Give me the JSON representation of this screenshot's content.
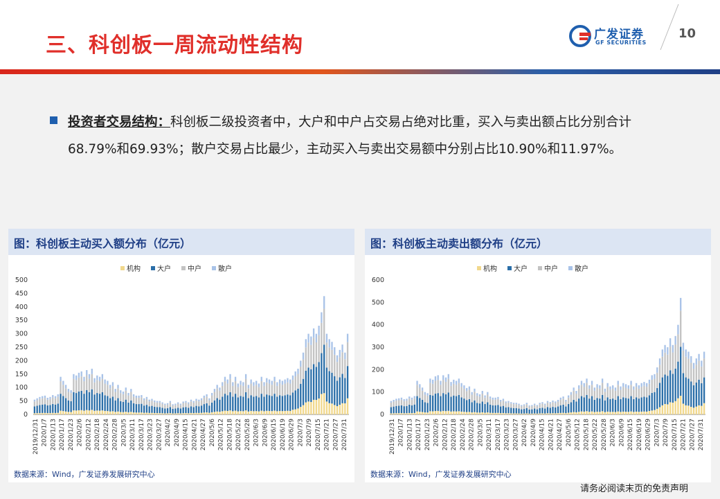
{
  "header": {
    "title": "三、科创板一周流动性结构",
    "logo_cn": "广发证券",
    "logo_en": "GF SECURITIES",
    "page_number": "10"
  },
  "body": {
    "lead": "投资者交易结构：",
    "text": "科创板二级投资者中，大户和中户占交易占绝对比重，买入与卖出额占比分别合计68.79%和69.93%；散户交易占比最少，主动买入与卖出交易额中分别占比10.90%和11.97%。"
  },
  "footer_note": "请务必阅读末页的免责声明",
  "colors": {
    "institution": "#f1d88c",
    "large": "#2a6ea8",
    "medium": "#c3c3c3",
    "retail": "#a9c3e8",
    "accent_red": "#e02f2a",
    "accent_blue": "#1f5fae"
  },
  "chart_data": [
    {
      "type": "bar",
      "title": "图：科创板主动买入额分布（亿元）",
      "source": "数据来源：Wind，广发证券发展研究中心",
      "stacked": true,
      "ylim": [
        0,
        500
      ],
      "yticks": [
        0,
        50,
        100,
        150,
        200,
        250,
        300,
        350,
        400,
        450,
        500
      ],
      "legend": [
        "机构",
        "大户",
        "中户",
        "散户"
      ],
      "legend_position": "top",
      "xtick_labels": [
        "2019/12/31",
        "2020/1/7",
        "2020/1/13",
        "2020/1/17",
        "2020/1/23",
        "2020/2/6",
        "2020/2/12",
        "2020/2/18",
        "2020/2/24",
        "2020/2/28",
        "2020/3/5",
        "2020/3/11",
        "2020/3/17",
        "2020/3/23",
        "2020/3/27",
        "2020/4/2",
        "2020/4/9",
        "2020/4/15",
        "2020/4/21",
        "2020/4/27",
        "2020/5/6",
        "2020/5/12",
        "2020/5/18",
        "2020/5/22",
        "2020/5/28",
        "2020/6/3",
        "2020/6/9",
        "2020/6/15",
        "2020/6/19",
        "2020/6/29",
        "2020/7/3",
        "2020/7/9",
        "2020/7/15",
        "2020/7/21",
        "2020/7/27",
        "2020/7/31"
      ],
      "totals": [
        55,
        60,
        65,
        68,
        70,
        62,
        65,
        72,
        68,
        75,
        140,
        125,
        110,
        95,
        90,
        150,
        145,
        155,
        160,
        140,
        165,
        150,
        170,
        135,
        145,
        140,
        150,
        130,
        125,
        110,
        120,
        95,
        110,
        90,
        85,
        100,
        80,
        95,
        75,
        70,
        70,
        72,
        60,
        65,
        55,
        58,
        52,
        50,
        50,
        45,
        40,
        42,
        50,
        38,
        40,
        45,
        40,
        48,
        50,
        45,
        55,
        50,
        58,
        55,
        60,
        70,
        75,
        60,
        80,
        95,
        110,
        100,
        120,
        140,
        130,
        150,
        120,
        140,
        115,
        125,
        120,
        150,
        110,
        130,
        120,
        125,
        115,
        140,
        120,
        135,
        130,
        125,
        140,
        120,
        130,
        125,
        130,
        135,
        130,
        145,
        160,
        170,
        200,
        230,
        280,
        300,
        290,
        320,
        300,
        330,
        380,
        440,
        300,
        280,
        270,
        250,
        220,
        240,
        260,
        230,
        300
      ],
      "inst_share": [
        0.08,
        0.08,
        0.08,
        0.08,
        0.08,
        0.08,
        0.08,
        0.08,
        0.08,
        0.08,
        0.1,
        0.1,
        0.1,
        0.1,
        0.1,
        0.1,
        0.1,
        0.1,
        0.1,
        0.1,
        0.1,
        0.1,
        0.1,
        0.1,
        0.1,
        0.1,
        0.1,
        0.1,
        0.1,
        0.1,
        0.1,
        0.1,
        0.1,
        0.1,
        0.1,
        0.1,
        0.1,
        0.1,
        0.1,
        0.1,
        0.1,
        0.1,
        0.1,
        0.1,
        0.1,
        0.1,
        0.1,
        0.1,
        0.1,
        0.1,
        0.1,
        0.1,
        0.1,
        0.1,
        0.1,
        0.1,
        0.1,
        0.1,
        0.1,
        0.1,
        0.1,
        0.1,
        0.1,
        0.1,
        0.1,
        0.1,
        0.1,
        0.1,
        0.1,
        0.1,
        0.1,
        0.1,
        0.1,
        0.1,
        0.1,
        0.1,
        0.1,
        0.1,
        0.1,
        0.1,
        0.1,
        0.1,
        0.1,
        0.1,
        0.1,
        0.1,
        0.1,
        0.1,
        0.1,
        0.1,
        0.1,
        0.1,
        0.1,
        0.1,
        0.1,
        0.1,
        0.1,
        0.1,
        0.1,
        0.12,
        0.12,
        0.13,
        0.14,
        0.15,
        0.16,
        0.16,
        0.16,
        0.17,
        0.18,
        0.18,
        0.2,
        0.18,
        0.16,
        0.15,
        0.15,
        0.14,
        0.14,
        0.15,
        0.16,
        0.18,
        0.2
      ]
    },
    {
      "type": "bar",
      "title": "图：科创板主动卖出额分布（亿元）",
      "source": "数据来源：Wind，广发证券发展研究中心",
      "stacked": true,
      "ylim": [
        0,
        600
      ],
      "yticks": [
        0,
        100,
        200,
        300,
        400,
        500,
        600
      ],
      "legend": [
        "机构",
        "大户",
        "中户",
        "散户"
      ],
      "legend_position": "top",
      "xtick_labels": [
        "2019/12/31",
        "2020/1/7",
        "2020/1/13",
        "2020/1/17",
        "2020/1/23",
        "2020/2/6",
        "2020/2/12",
        "2020/2/18",
        "2020/2/24",
        "2020/2/28",
        "2020/3/5",
        "2020/3/11",
        "2020/3/17",
        "2020/3/23",
        "2020/3/27",
        "2020/4/2",
        "2020/4/9",
        "2020/4/15",
        "2020/4/21",
        "2020/4/27",
        "2020/5/6",
        "2020/5/12",
        "2020/5/18",
        "2020/5/22",
        "2020/5/28",
        "2020/6/3",
        "2020/6/9",
        "2020/6/15",
        "2020/6/19",
        "2020/6/29",
        "2020/7/3",
        "2020/7/9",
        "2020/7/15",
        "2020/7/21",
        "2020/7/27",
        "2020/7/31"
      ],
      "totals": [
        60,
        65,
        70,
        72,
        75,
        68,
        70,
        80,
        75,
        82,
        150,
        135,
        120,
        100,
        95,
        160,
        155,
        170,
        175,
        150,
        175,
        165,
        180,
        145,
        155,
        150,
        160,
        140,
        130,
        118,
        125,
        100,
        115,
        95,
        90,
        105,
        85,
        100,
        80,
        75,
        75,
        78,
        65,
        70,
        58,
        60,
        55,
        52,
        52,
        48,
        42,
        45,
        52,
        40,
        42,
        48,
        42,
        52,
        55,
        48,
        60,
        55,
        62,
        58,
        65,
        75,
        80,
        65,
        85,
        100,
        120,
        105,
        130,
        150,
        140,
        160,
        130,
        150,
        120,
        135,
        130,
        160,
        115,
        140,
        125,
        130,
        120,
        150,
        125,
        140,
        135,
        130,
        150,
        125,
        140,
        130,
        140,
        145,
        140,
        155,
        175,
        180,
        210,
        250,
        290,
        310,
        300,
        340,
        310,
        350,
        400,
        520,
        320,
        290,
        280,
        260,
        230,
        250,
        270,
        240,
        280
      ],
      "inst_share": [
        0.08,
        0.08,
        0.08,
        0.08,
        0.08,
        0.08,
        0.08,
        0.08,
        0.08,
        0.08,
        0.09,
        0.09,
        0.09,
        0.09,
        0.09,
        0.09,
        0.09,
        0.09,
        0.09,
        0.09,
        0.09,
        0.09,
        0.09,
        0.09,
        0.09,
        0.09,
        0.09,
        0.09,
        0.09,
        0.09,
        0.09,
        0.09,
        0.09,
        0.09,
        0.09,
        0.09,
        0.09,
        0.09,
        0.09,
        0.09,
        0.09,
        0.09,
        0.09,
        0.09,
        0.09,
        0.09,
        0.09,
        0.09,
        0.09,
        0.09,
        0.09,
        0.09,
        0.09,
        0.09,
        0.09,
        0.09,
        0.09,
        0.09,
        0.09,
        0.09,
        0.09,
        0.09,
        0.09,
        0.09,
        0.09,
        0.09,
        0.09,
        0.09,
        0.09,
        0.09,
        0.09,
        0.09,
        0.09,
        0.09,
        0.09,
        0.09,
        0.09,
        0.09,
        0.09,
        0.09,
        0.09,
        0.09,
        0.09,
        0.09,
        0.09,
        0.09,
        0.09,
        0.09,
        0.09,
        0.09,
        0.09,
        0.09,
        0.09,
        0.09,
        0.09,
        0.09,
        0.09,
        0.09,
        0.09,
        0.1,
        0.1,
        0.11,
        0.12,
        0.13,
        0.14,
        0.15,
        0.15,
        0.16,
        0.17,
        0.17,
        0.18,
        0.16,
        0.15,
        0.14,
        0.14,
        0.13,
        0.13,
        0.14,
        0.15,
        0.16,
        0.18
      ]
    }
  ]
}
